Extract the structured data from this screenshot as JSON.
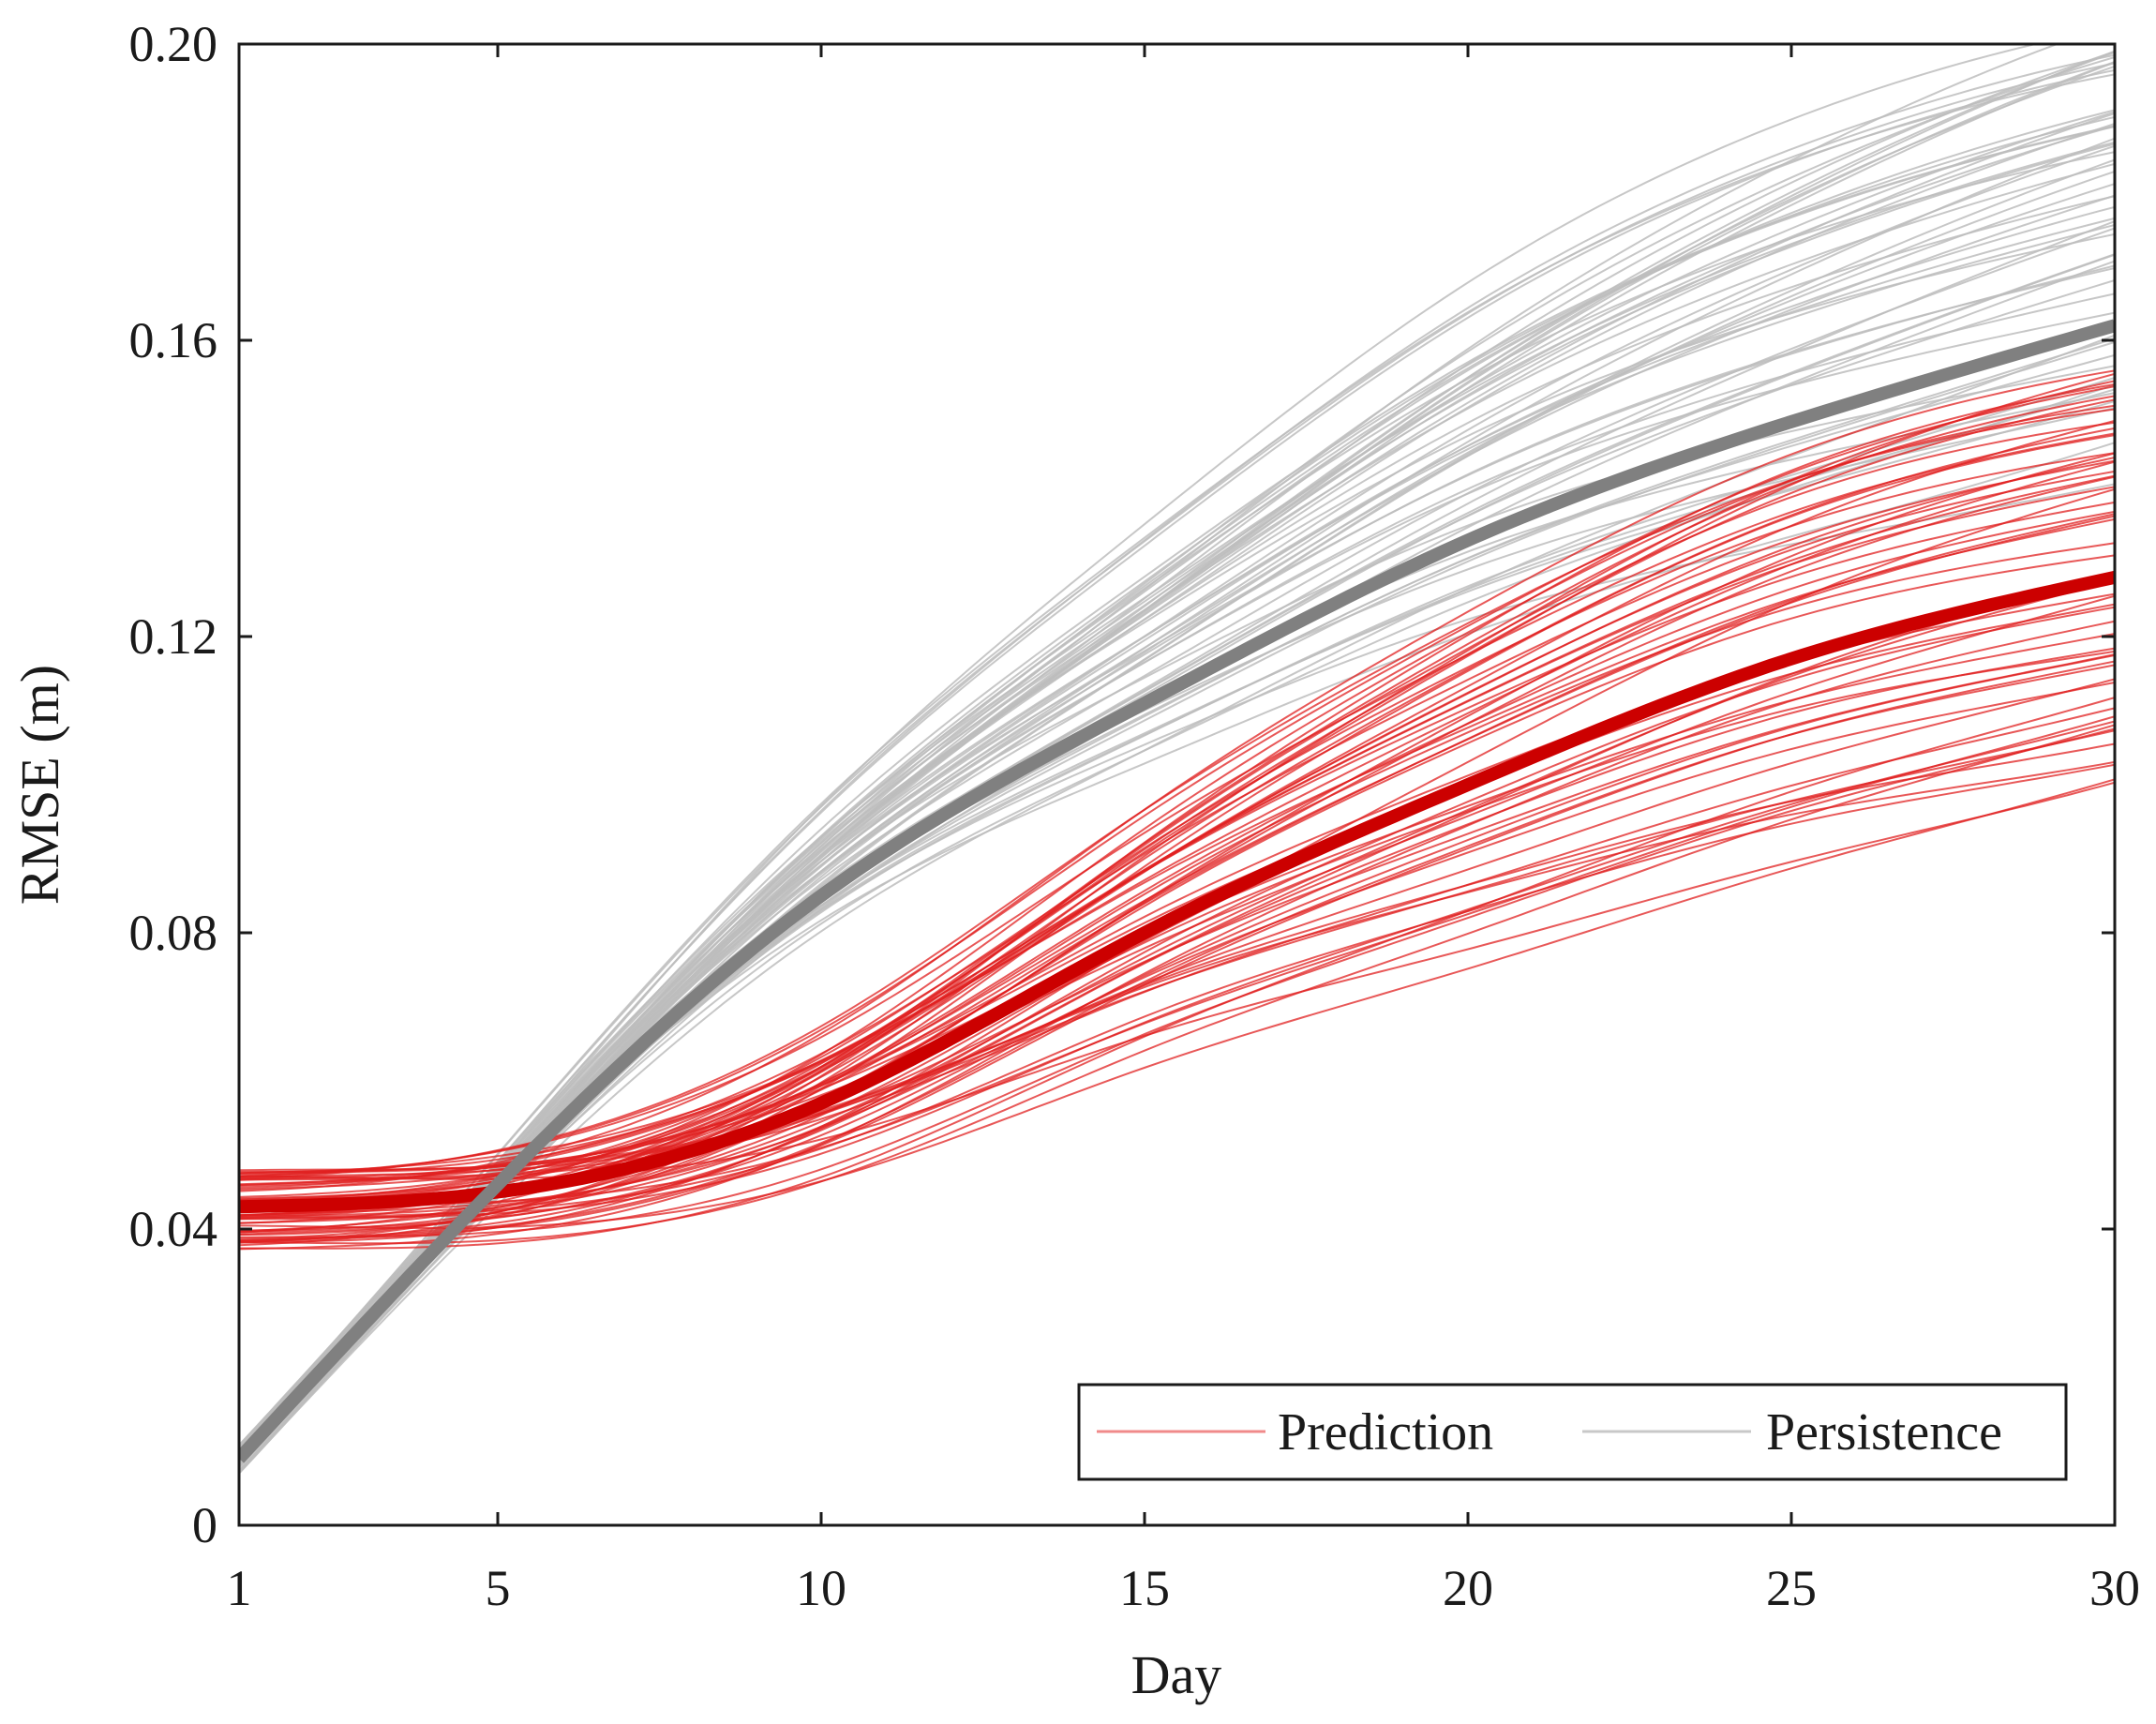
{
  "chart_data": {
    "type": "line",
    "title": "",
    "xlabel": "Day",
    "ylabel": "RMSE (m)",
    "xlim": [
      1,
      30
    ],
    "ylim": [
      0,
      0.2
    ],
    "x_ticks": [
      1,
      5,
      10,
      15,
      20,
      25,
      30
    ],
    "x_tick_labels": [
      "1",
      "5",
      "10",
      "15",
      "20",
      "25",
      "30"
    ],
    "y_ticks": [
      0,
      0.04,
      0.08,
      0.12,
      0.16,
      0.2
    ],
    "y_tick_labels": [
      "0",
      "0.04",
      "0.08",
      "0.12",
      "0.16",
      "0.20"
    ],
    "grid": false,
    "legend_position": "bottom-right",
    "legend_orientation": "horizontal",
    "x": [
      1,
      5,
      10,
      15,
      20,
      25,
      30
    ],
    "series": [
      {
        "name": "Prediction",
        "role": "mean",
        "legend_color": "#f08a8a",
        "color": "#cc0000",
        "values": [
          0.043,
          0.045,
          0.057,
          0.08,
          0.1,
          0.117,
          0.128
        ]
      },
      {
        "name": "Persistence",
        "role": "mean",
        "legend_color": "#c8c8c8",
        "color": "#808080",
        "values": [
          0.009,
          0.046,
          0.085,
          0.111,
          0.133,
          0.149,
          0.162
        ]
      }
    ],
    "ensembles": [
      {
        "series": "Prediction",
        "member_count": 60,
        "color": "#e02020",
        "day1_range": [
          0.037,
          0.048
        ],
        "day30_range": [
          0.1,
          0.158
        ]
      },
      {
        "series": "Persistence",
        "member_count": 60,
        "color": "#bdbdbd",
        "day1_range": [
          0.007,
          0.011
        ],
        "day30_range": [
          0.14,
          0.203
        ]
      }
    ]
  }
}
